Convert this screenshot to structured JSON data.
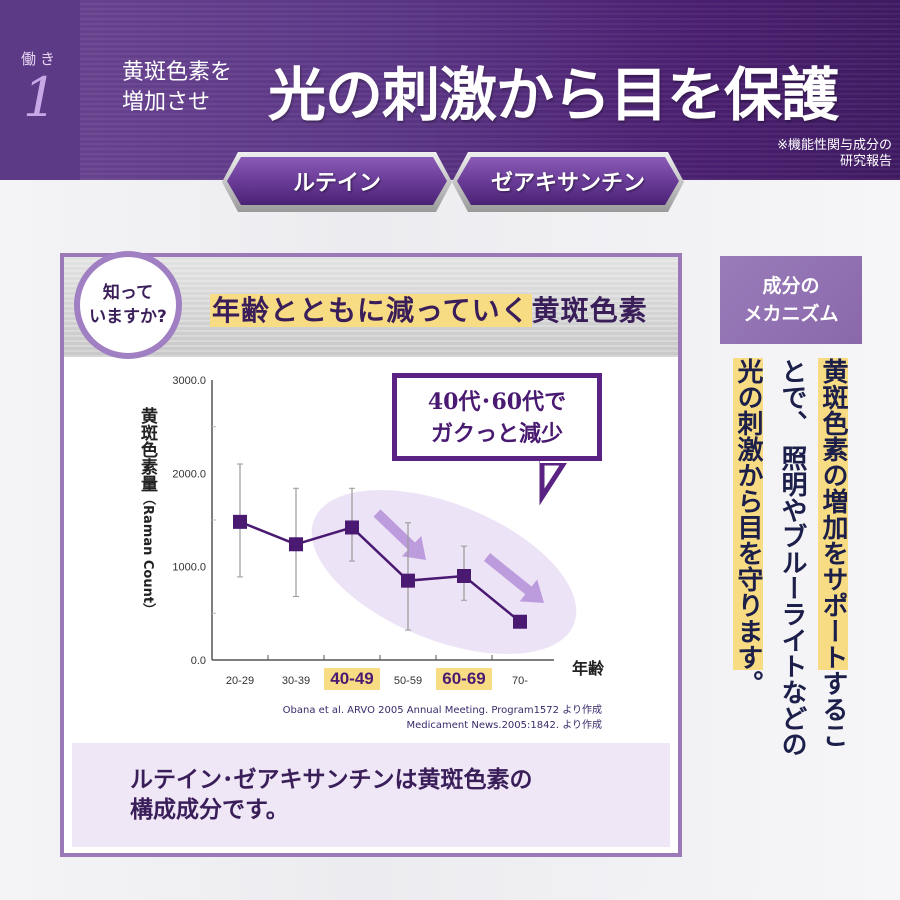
{
  "header": {
    "badge_label": "働き",
    "badge_number": "1",
    "subtitle_line1": "黄斑色素を",
    "subtitle_line2": "増加させ",
    "title": "光の刺激から目を保護",
    "note_line1": "※機能性関与成分の",
    "note_line2": "研究報告"
  },
  "tags": [
    {
      "label": "ルテイン"
    },
    {
      "label": "ゼアキサンチン"
    }
  ],
  "panel": {
    "circle_line1": "知って",
    "circle_line2": "いますか?",
    "title_highlight": "年齢とともに減っていく",
    "title_rest": "黄斑色素",
    "callout_line1": "40代･60代で",
    "callout_line2": "ガクっと減少",
    "citation_line1": "Obana et al. ARVO 2005 Annual Meeting. Program1572 より作成",
    "citation_line2": "Medicament News.2005:1842. より作成",
    "bottom_line1": "ルテイン･ゼアキサンチンは黄斑色素の",
    "bottom_line2": "構成成分です。"
  },
  "side": {
    "mech_line1": "成分の",
    "mech_line2": "メカニズム",
    "col1_highlight": "黄斑色素の増加をサポート",
    "col1_rest": "するこ",
    "col2": "とで、 照明やブルーライトなどの",
    "col3_highlight": "光の刺激から目を守ります",
    "col3_rest": "。"
  },
  "colors": {
    "primary_purple": "#4a1a72",
    "highlight_yellow": "#f8dc84",
    "panel_border": "#9b78b8",
    "navy_text": "#1c1f4a"
  },
  "chart_data": {
    "type": "line",
    "title": "年齢とともに減っていく黄斑色素",
    "xlabel": "年齢",
    "ylabel": "黄斑色素量 (Raman Count)",
    "categories": [
      "20-29",
      "30-39",
      "40-49",
      "50-59",
      "60-69",
      "70-"
    ],
    "highlighted_categories": [
      "40-49",
      "60-69"
    ],
    "series": [
      {
        "name": "黄斑色素量",
        "values": [
          1480,
          1240,
          1420,
          850,
          900,
          410
        ],
        "error_upper": [
          2100,
          1840,
          1840,
          1470,
          1220,
          null
        ],
        "error_lower": [
          890,
          680,
          1060,
          320,
          640,
          null
        ]
      }
    ],
    "yticks": [
      "0.0",
      "1000.0",
      "2000.0",
      "3000.0"
    ],
    "ylim": [
      0,
      3000
    ],
    "annotation": "40代･60代でガクっと減少",
    "grid": false,
    "legend": "none"
  }
}
